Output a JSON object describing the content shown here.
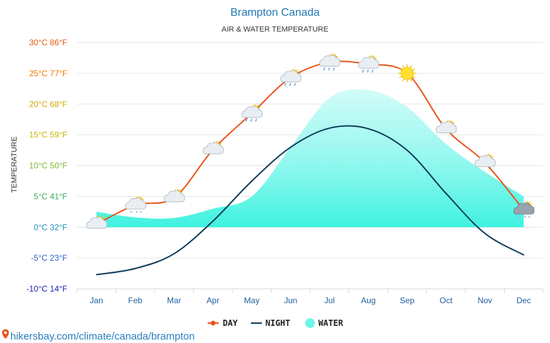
{
  "chart_data": {
    "type": "line",
    "title": "Brampton Canada",
    "subtitle": "AIR & WATER TEMPERATURE",
    "ylabel": "TEMPERATURE",
    "xlabel": "",
    "ylim": [
      -10,
      30
    ],
    "yticks": [
      {
        "value": 30,
        "label": "30°C 86°F",
        "color": "#e8590c"
      },
      {
        "value": 25,
        "label": "25°C 77°F",
        "color": "#f07800"
      },
      {
        "value": 20,
        "label": "20°C 68°F",
        "color": "#d4a800"
      },
      {
        "value": 15,
        "label": "15°C 59°F",
        "color": "#c8b400"
      },
      {
        "value": 10,
        "label": "10°C 50°F",
        "color": "#7cba2a"
      },
      {
        "value": 5,
        "label": "5°C 41°F",
        "color": "#3aa85a"
      },
      {
        "value": 0,
        "label": "0°C 32°F",
        "color": "#1a8fbf"
      },
      {
        "value": -5,
        "label": "-5°C 23°F",
        "color": "#2a5fc8"
      },
      {
        "value": -10,
        "label": "-10°C 14°F",
        "color": "#1a1ab0"
      }
    ],
    "categories": [
      "Jan",
      "Feb",
      "Mar",
      "Apr",
      "May",
      "Jun",
      "Jul",
      "Aug",
      "Sep",
      "Oct",
      "Nov",
      "Dec"
    ],
    "series": [
      {
        "name": "DAY",
        "color": "#e8531a",
        "values": [
          0.5,
          3.6,
          4.8,
          12.6,
          18.5,
          24.3,
          26.8,
          26.5,
          25.0,
          16.0,
          10.5,
          2.8
        ]
      },
      {
        "name": "NIGHT",
        "color": "#0d3b58",
        "values": [
          -7.7,
          -6.7,
          -4.3,
          1.0,
          7.5,
          13.0,
          16.1,
          16.0,
          12.5,
          5.5,
          -1.0,
          -4.5
        ]
      },
      {
        "name": "WATER",
        "color": "#6ff5ea",
        "values": [
          2.5,
          1.6,
          1.5,
          3.0,
          5.0,
          13.0,
          21.0,
          22.3,
          19.5,
          13.5,
          9.0,
          5.0
        ]
      }
    ],
    "weather_icons": [
      "partly-cloudy-icon",
      "snow-cloud-sun-icon",
      "partly-cloudy-icon",
      "partly-cloudy-icon",
      "rain-cloud-sun-icon",
      "rain-cloud-sun-icon",
      "rain-cloud-sun-icon",
      "rain-cloud-sun-icon",
      "sun-icon",
      "partly-cloudy-icon",
      "partly-cloudy-icon",
      "snow-cloud-sun-icon"
    ],
    "legend": [
      {
        "label": "DAY",
        "marker": "line-dot",
        "color": "#e8531a"
      },
      {
        "label": "NIGHT",
        "marker": "line",
        "color": "#0d3b58"
      },
      {
        "label": "WATER",
        "marker": "circle",
        "color": "#6ff5ea"
      }
    ],
    "legend_position": "bottom-center"
  },
  "source": {
    "icon": "location-pin-icon",
    "text": "hikersbay.com/climate/canada/brampton",
    "color": "#e8531a"
  }
}
